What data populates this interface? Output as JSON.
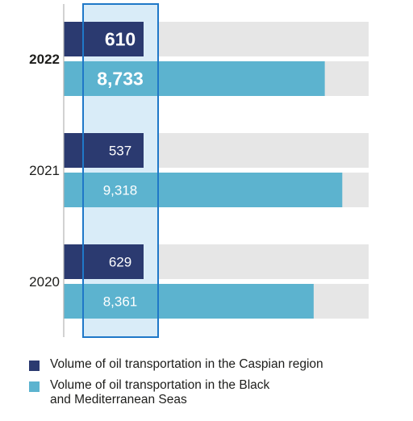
{
  "chart_data": {
    "type": "bar",
    "orientation": "horizontal",
    "categories": [
      "2022",
      "2021",
      "2020"
    ],
    "highlighted_category": "2022",
    "series": [
      {
        "name": "Volume of oil transportation in the Caspian region",
        "values": [
          610,
          537,
          629
        ],
        "labels": [
          "610",
          "537",
          "629"
        ],
        "color": "#2b3a70"
      },
      {
        "name": "Volume of oil transportation in the Black\nand Mediterranean Seas",
        "values": [
          8733,
          9318,
          8361
        ],
        "labels": [
          "8,733",
          "9,318",
          "8,361"
        ],
        "color": "#5cb3cf"
      }
    ],
    "track_color": "#e6e6e6",
    "highlight_box_color": "#1f78c8",
    "highlight_fill": "#d9ecf8",
    "grid": false,
    "legend": "bottom"
  }
}
